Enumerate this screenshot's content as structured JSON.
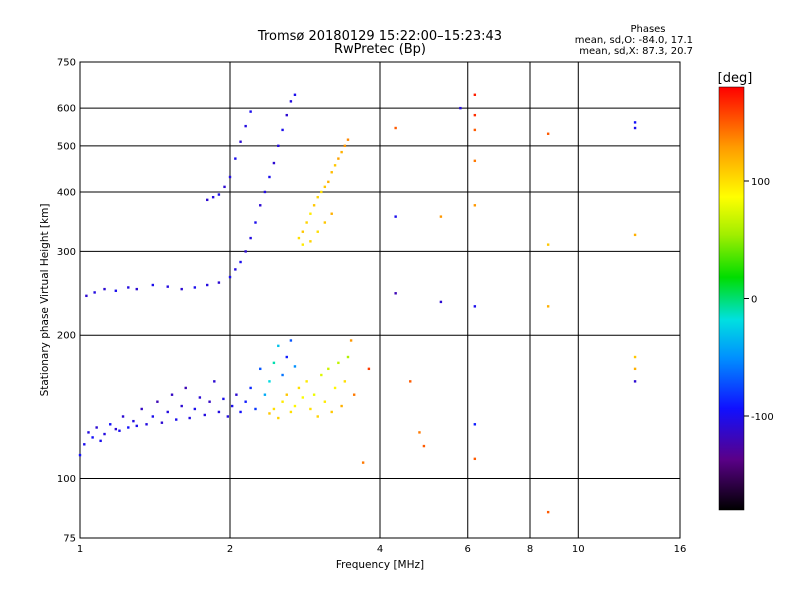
{
  "header": {
    "title": "Tromsø 20180129 15:22:00–15:23:43",
    "subtitle": "RwPretec (Bp)",
    "stats_title": "Phases",
    "stats_o": "mean, sd,O: -84.0, 17.1",
    "stats_x": "mean, sd,X: 87.3, 20.7"
  },
  "colorbar": {
    "label": "[deg]",
    "range": [
      -180,
      180
    ],
    "ticks": [
      {
        "value": 100,
        "label": "100"
      },
      {
        "value": 0,
        "label": "0"
      },
      {
        "value": -100,
        "label": "-100"
      }
    ]
  },
  "chart_data": {
    "type": "scatter",
    "xlabel": "Frequency [MHz]",
    "ylabel": "Stationary phase Virtual Height [km]",
    "x_scale": "log",
    "y_scale": "log",
    "xlim": [
      1,
      16
    ],
    "ylim": [
      75,
      750
    ],
    "grid": true,
    "x_ticks": [
      {
        "value": 1,
        "label": "1"
      },
      {
        "value": 2,
        "label": "2"
      },
      {
        "value": 4,
        "label": "4"
      },
      {
        "value": 6,
        "label": "6"
      },
      {
        "value": 8,
        "label": "8"
      },
      {
        "value": 10,
        "label": "10"
      },
      {
        "value": 16,
        "label": "16"
      }
    ],
    "y_ticks": [
      {
        "value": 75,
        "label": "75"
      },
      {
        "value": 100,
        "label": "100"
      },
      {
        "value": 200,
        "label": "200"
      },
      {
        "value": 300,
        "label": "300"
      },
      {
        "value": 400,
        "label": "400"
      },
      {
        "value": 500,
        "label": "500"
      },
      {
        "value": 600,
        "label": "600"
      },
      {
        "value": 750,
        "label": "750"
      }
    ],
    "color_by": "phase [deg]",
    "series": [
      {
        "description": "lower trace",
        "points": [
          [
            1.0,
            112,
            -95
          ],
          [
            1.02,
            118,
            -100
          ],
          [
            1.04,
            125,
            -105
          ],
          [
            1.06,
            122,
            -95
          ],
          [
            1.08,
            128,
            -110
          ],
          [
            1.1,
            120,
            -100
          ],
          [
            1.12,
            124,
            -105
          ],
          [
            1.15,
            130,
            -95
          ],
          [
            1.18,
            127,
            -110
          ],
          [
            1.2,
            126,
            -100
          ],
          [
            1.22,
            135,
            -110
          ],
          [
            1.25,
            128,
            -95
          ],
          [
            1.28,
            132,
            -105
          ],
          [
            1.3,
            129,
            -100
          ],
          [
            1.33,
            140,
            -115
          ],
          [
            1.36,
            130,
            -105
          ],
          [
            1.4,
            135,
            -100
          ],
          [
            1.43,
            145,
            -120
          ],
          [
            1.46,
            131,
            -110
          ],
          [
            1.5,
            138,
            -105
          ],
          [
            1.53,
            150,
            -115
          ],
          [
            1.56,
            133,
            -100
          ],
          [
            1.6,
            142,
            -110
          ],
          [
            1.63,
            155,
            -120
          ],
          [
            1.66,
            134,
            -105
          ],
          [
            1.7,
            140,
            -100
          ],
          [
            1.74,
            148,
            -110
          ],
          [
            1.78,
            136,
            -105
          ],
          [
            1.82,
            145,
            -115
          ],
          [
            1.86,
            160,
            -110
          ],
          [
            1.9,
            138,
            -105
          ],
          [
            1.94,
            147,
            -100
          ],
          [
            1.98,
            135,
            -105
          ],
          [
            2.02,
            142,
            -100
          ],
          [
            2.06,
            150,
            -110
          ],
          [
            2.1,
            138,
            -95
          ],
          [
            2.15,
            145,
            -90
          ],
          [
            2.2,
            155,
            -85
          ],
          [
            2.25,
            140,
            -80
          ],
          [
            2.3,
            170,
            -70
          ],
          [
            2.35,
            150,
            -40
          ],
          [
            2.4,
            160,
            -20
          ],
          [
            2.45,
            175,
            -10
          ],
          [
            2.5,
            190,
            -30
          ],
          [
            2.55,
            165,
            -60
          ],
          [
            2.6,
            180,
            -90
          ],
          [
            2.65,
            195,
            -70
          ],
          [
            2.7,
            172,
            -50
          ]
        ]
      },
      {
        "description": "lower X trace",
        "points": [
          [
            2.4,
            137,
            110
          ],
          [
            2.45,
            140,
            100
          ],
          [
            2.5,
            134,
            105
          ],
          [
            2.55,
            145,
            95
          ],
          [
            2.6,
            150,
            110
          ],
          [
            2.65,
            138,
            100
          ],
          [
            2.7,
            142,
            90
          ],
          [
            2.75,
            155,
            100
          ],
          [
            2.8,
            148,
            85
          ],
          [
            2.85,
            160,
            95
          ],
          [
            2.9,
            140,
            100
          ],
          [
            2.95,
            150,
            80
          ],
          [
            3.0,
            135,
            105
          ],
          [
            3.05,
            165,
            75
          ],
          [
            3.1,
            145,
            95
          ],
          [
            3.15,
            170,
            70
          ],
          [
            3.2,
            138,
            110
          ],
          [
            3.25,
            155,
            90
          ],
          [
            3.3,
            175,
            65
          ],
          [
            3.35,
            142,
            120
          ],
          [
            3.4,
            160,
            100
          ],
          [
            3.45,
            180,
            60
          ],
          [
            3.5,
            195,
            130
          ],
          [
            3.55,
            150,
            140
          ]
        ]
      },
      {
        "description": "upper trace",
        "points": [
          [
            1.03,
            242,
            -110
          ],
          [
            1.07,
            246,
            -105
          ],
          [
            1.12,
            250,
            -110
          ],
          [
            1.18,
            248,
            -100
          ],
          [
            1.25,
            252,
            -105
          ],
          [
            1.3,
            250,
            -110
          ],
          [
            1.4,
            255,
            -100
          ],
          [
            1.5,
            253,
            -105
          ],
          [
            1.6,
            250,
            -110
          ],
          [
            1.7,
            252,
            -100
          ],
          [
            1.8,
            255,
            -105
          ],
          [
            1.9,
            258,
            -110
          ],
          [
            2.0,
            265,
            -100
          ],
          [
            2.05,
            275,
            -105
          ],
          [
            2.1,
            285,
            -100
          ],
          [
            2.15,
            300,
            -110
          ],
          [
            2.2,
            320,
            -105
          ],
          [
            2.25,
            345,
            -100
          ],
          [
            2.3,
            375,
            -110
          ],
          [
            2.35,
            400,
            -105
          ],
          [
            2.4,
            430,
            -100
          ],
          [
            2.45,
            460,
            -110
          ],
          [
            2.5,
            500,
            -105
          ],
          [
            2.55,
            540,
            -100
          ],
          [
            2.6,
            580,
            -110
          ],
          [
            2.65,
            620,
            -105
          ],
          [
            2.7,
            640,
            -100
          ],
          [
            1.8,
            385,
            -110
          ],
          [
            1.85,
            390,
            -105
          ],
          [
            1.9,
            395,
            -100
          ],
          [
            1.95,
            410,
            -110
          ],
          [
            2.0,
            430,
            -105
          ],
          [
            2.05,
            470,
            -100
          ],
          [
            2.1,
            510,
            -110
          ],
          [
            2.15,
            550,
            -105
          ],
          [
            2.2,
            590,
            -100
          ]
        ]
      },
      {
        "description": "upper X trace",
        "points": [
          [
            2.75,
            320,
            100
          ],
          [
            2.8,
            330,
            110
          ],
          [
            2.85,
            345,
            105
          ],
          [
            2.9,
            360,
            95
          ],
          [
            2.95,
            375,
            110
          ],
          [
            3.0,
            390,
            105
          ],
          [
            3.05,
            400,
            100
          ],
          [
            3.1,
            410,
            110
          ],
          [
            3.15,
            420,
            120
          ],
          [
            3.2,
            440,
            115
          ],
          [
            3.25,
            455,
            110
          ],
          [
            3.3,
            470,
            125
          ],
          [
            3.35,
            485,
            120
          ],
          [
            3.4,
            500,
            130
          ],
          [
            3.45,
            515,
            135
          ],
          [
            2.8,
            310,
            95
          ],
          [
            2.9,
            315,
            105
          ],
          [
            3.0,
            330,
            100
          ],
          [
            3.1,
            345,
            110
          ],
          [
            3.2,
            360,
            120
          ]
        ]
      },
      {
        "description": "scattered points",
        "points": [
          [
            4.3,
            545,
            150
          ],
          [
            4.3,
            355,
            -100
          ],
          [
            4.3,
            245,
            -120
          ],
          [
            5.3,
            355,
            130
          ],
          [
            5.3,
            235,
            -110
          ],
          [
            5.8,
            600,
            -105
          ],
          [
            6.2,
            640,
            170
          ],
          [
            6.2,
            580,
            165
          ],
          [
            6.2,
            540,
            150
          ],
          [
            6.2,
            465,
            140
          ],
          [
            6.2,
            375,
            130
          ],
          [
            6.2,
            230,
            -100
          ],
          [
            6.2,
            130,
            -90
          ],
          [
            6.2,
            110,
            150
          ],
          [
            8.7,
            530,
            150
          ],
          [
            8.7,
            310,
            110
          ],
          [
            8.7,
            230,
            120
          ],
          [
            8.7,
            85,
            150
          ],
          [
            13.0,
            560,
            -95
          ],
          [
            13.0,
            545,
            -100
          ],
          [
            13.0,
            325,
            120
          ],
          [
            13.0,
            180,
            110
          ],
          [
            13.0,
            170,
            120
          ],
          [
            13.0,
            160,
            -110
          ],
          [
            4.6,
            160,
            150
          ],
          [
            4.8,
            125,
            140
          ],
          [
            4.9,
            117,
            150
          ],
          [
            3.8,
            170,
            160
          ],
          [
            3.7,
            108,
            140
          ]
        ]
      }
    ]
  }
}
